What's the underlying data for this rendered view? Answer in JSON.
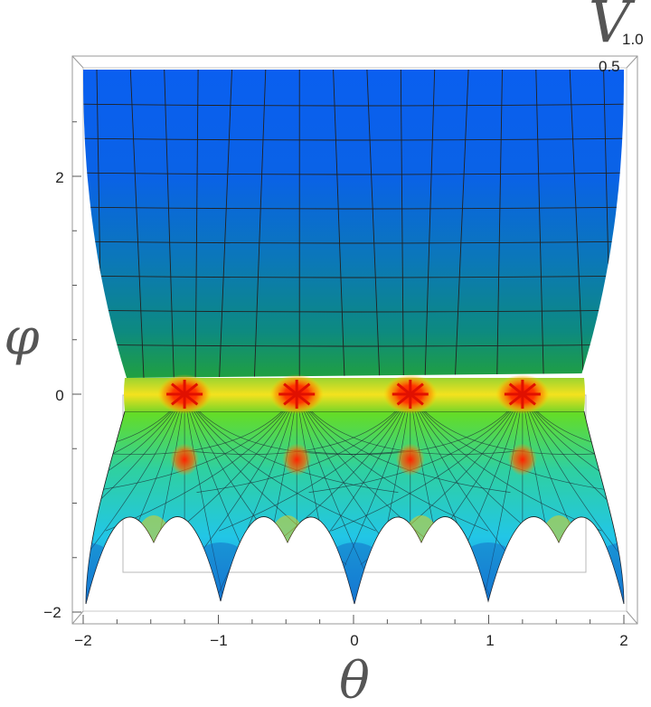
{
  "chart_data": {
    "type": "surface3d",
    "xlabel": "θ",
    "ylabel": "φ",
    "zlabel": "V",
    "x_ticks": [
      "−2",
      "−1",
      "0",
      "1",
      "2"
    ],
    "x_tick_values": [
      -2,
      -1,
      0,
      1,
      2
    ],
    "y_ticks": [
      "2",
      "0",
      "−2"
    ],
    "y_tick_values": [
      2,
      0,
      -2
    ],
    "z_ticks": [
      "1.0",
      "0.5"
    ],
    "xlim": [
      -2,
      2
    ],
    "ylim": [
      -2,
      3
    ],
    "grid": true,
    "singular_points": [
      {
        "theta": -1.25,
        "phi": 0.0
      },
      {
        "theta": -0.42,
        "phi": 0.0
      },
      {
        "theta": 0.42,
        "phi": 0.0
      },
      {
        "theta": 1.25,
        "phi": 0.0
      },
      {
        "theta": -1.25,
        "phi": -0.6
      },
      {
        "theta": -0.42,
        "phi": -0.6
      },
      {
        "theta": 0.42,
        "phi": -0.6
      },
      {
        "theta": 1.25,
        "phi": -0.6
      }
    ],
    "colors": {
      "high": "#0a5ff0",
      "mid": "#12a060",
      "band": "#f2e020",
      "singular": "#ff1a00",
      "low": "#35d6e8"
    }
  }
}
